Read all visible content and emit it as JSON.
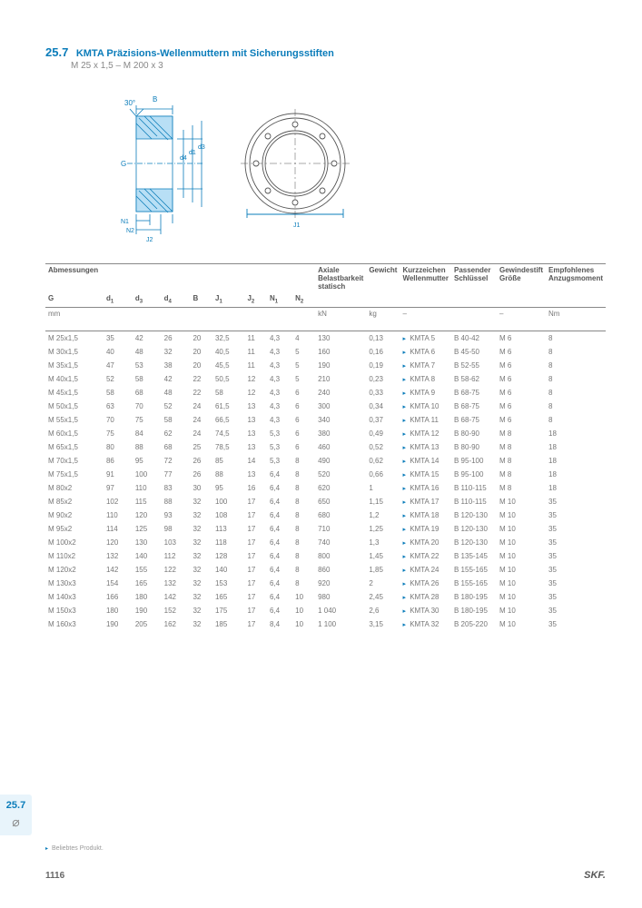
{
  "header": {
    "section": "25.7",
    "title": "KMTA Präzisions-Wellenmuttern mit Sicherungsstiften",
    "subtitle": "M 25 x 1,5 – M 200 x 3"
  },
  "diagram": {
    "labels": [
      "30°",
      "B",
      "G",
      "d4",
      "d1",
      "d3",
      "N1",
      "N2",
      "J2",
      "J1"
    ]
  },
  "table": {
    "group_headers": [
      "Abmessungen",
      "Axiale Belastbarkeit statisch",
      "Gewicht",
      "Kurzzeichen Wellenmutter",
      "Passender Schlüssel",
      "Gewindestift Größe",
      "Empfohlenes Anzugsmoment"
    ],
    "col_headers": [
      "G",
      "d1",
      "d3",
      "d4",
      "B",
      "J1",
      "J2",
      "N1",
      "N2",
      "",
      "",
      "",
      "",
      "",
      ""
    ],
    "units": [
      "mm",
      "",
      "",
      "",
      "",
      "",
      "",
      "",
      "",
      "kN",
      "kg",
      "–",
      "",
      "–",
      "Nm"
    ],
    "rows": [
      [
        "M 25x1,5",
        "35",
        "42",
        "26",
        "20",
        "32,5",
        "11",
        "4,3",
        "4",
        "130",
        "0,13",
        "KMTA 5",
        "B 40-42",
        "M 6",
        "8"
      ],
      [
        "M 30x1,5",
        "40",
        "48",
        "32",
        "20",
        "40,5",
        "11",
        "4,3",
        "5",
        "160",
        "0,16",
        "KMTA 6",
        "B 45-50",
        "M 6",
        "8"
      ],
      [
        "M 35x1,5",
        "47",
        "53",
        "38",
        "20",
        "45,5",
        "11",
        "4,3",
        "5",
        "190",
        "0,19",
        "KMTA 7",
        "B 52-55",
        "M 6",
        "8"
      ],
      [
        "M 40x1,5",
        "52",
        "58",
        "42",
        "22",
        "50,5",
        "12",
        "4,3",
        "5",
        "210",
        "0,23",
        "KMTA 8",
        "B 58-62",
        "M 6",
        "8"
      ],
      [
        "M 45x1,5",
        "58",
        "68",
        "48",
        "22",
        "58",
        "12",
        "4,3",
        "6",
        "240",
        "0,33",
        "KMTA 9",
        "B 68-75",
        "M 6",
        "8"
      ],
      [
        "M 50x1,5",
        "63",
        "70",
        "52",
        "24",
        "61,5",
        "13",
        "4,3",
        "6",
        "300",
        "0,34",
        "KMTA 10",
        "B 68-75",
        "M 6",
        "8"
      ],
      [
        "M 55x1,5",
        "70",
        "75",
        "58",
        "24",
        "66,5",
        "13",
        "4,3",
        "6",
        "340",
        "0,37",
        "KMTA 11",
        "B 68-75",
        "M 6",
        "8"
      ],
      [
        "M 60x1,5",
        "75",
        "84",
        "62",
        "24",
        "74,5",
        "13",
        "5,3",
        "6",
        "380",
        "0,49",
        "KMTA 12",
        "B 80-90",
        "M 8",
        "18"
      ],
      [
        "M 65x1,5",
        "80",
        "88",
        "68",
        "25",
        "78,5",
        "13",
        "5,3",
        "6",
        "460",
        "0,52",
        "KMTA 13",
        "B 80-90",
        "M 8",
        "18"
      ],
      [
        "M 70x1,5",
        "86",
        "95",
        "72",
        "26",
        "85",
        "14",
        "5,3",
        "8",
        "490",
        "0,62",
        "KMTA 14",
        "B 95-100",
        "M 8",
        "18"
      ],
      [
        "M 75x1,5",
        "91",
        "100",
        "77",
        "26",
        "88",
        "13",
        "6,4",
        "8",
        "520",
        "0,66",
        "KMTA 15",
        "B 95-100",
        "M 8",
        "18"
      ],
      [
        "M 80x2",
        "97",
        "110",
        "83",
        "30",
        "95",
        "16",
        "6,4",
        "8",
        "620",
        "1",
        "KMTA 16",
        "B 110-115",
        "M 8",
        "18"
      ],
      [
        "M 85x2",
        "102",
        "115",
        "88",
        "32",
        "100",
        "17",
        "6,4",
        "8",
        "650",
        "1,15",
        "KMTA 17",
        "B 110-115",
        "M 10",
        "35"
      ],
      [
        "M 90x2",
        "110",
        "120",
        "93",
        "32",
        "108",
        "17",
        "6,4",
        "8",
        "680",
        "1,2",
        "KMTA 18",
        "B 120-130",
        "M 10",
        "35"
      ],
      [
        "M 95x2",
        "114",
        "125",
        "98",
        "32",
        "113",
        "17",
        "6,4",
        "8",
        "710",
        "1,25",
        "KMTA 19",
        "B 120-130",
        "M 10",
        "35"
      ],
      [
        "M 100x2",
        "120",
        "130",
        "103",
        "32",
        "118",
        "17",
        "6,4",
        "8",
        "740",
        "1,3",
        "KMTA 20",
        "B 120-130",
        "M 10",
        "35"
      ],
      [
        "M 110x2",
        "132",
        "140",
        "112",
        "32",
        "128",
        "17",
        "6,4",
        "8",
        "800",
        "1,45",
        "KMTA 22",
        "B 135-145",
        "M 10",
        "35"
      ],
      [
        "M 120x2",
        "142",
        "155",
        "122",
        "32",
        "140",
        "17",
        "6,4",
        "8",
        "860",
        "1,85",
        "KMTA 24",
        "B 155-165",
        "M 10",
        "35"
      ],
      [
        "M 130x3",
        "154",
        "165",
        "132",
        "32",
        "153",
        "17",
        "6,4",
        "8",
        "920",
        "2",
        "KMTA 26",
        "B 155-165",
        "M 10",
        "35"
      ],
      [
        "M 140x3",
        "166",
        "180",
        "142",
        "32",
        "165",
        "17",
        "6,4",
        "10",
        "980",
        "2,45",
        "KMTA 28",
        "B 180-195",
        "M 10",
        "35"
      ],
      [
        "M 150x3",
        "180",
        "190",
        "152",
        "32",
        "175",
        "17",
        "6,4",
        "10",
        "1 040",
        "2,6",
        "KMTA 30",
        "B 180-195",
        "M 10",
        "35"
      ],
      [
        "M 160x3",
        "190",
        "205",
        "162",
        "32",
        "185",
        "17",
        "8,4",
        "10",
        "1 100",
        "3,15",
        "KMTA 32",
        "B 205-220",
        "M 10",
        "35"
      ]
    ]
  },
  "sidetab": {
    "label": "25.7"
  },
  "footer": {
    "note": "Beliebtes Produkt.",
    "page": "1116",
    "brand": "SKF."
  }
}
